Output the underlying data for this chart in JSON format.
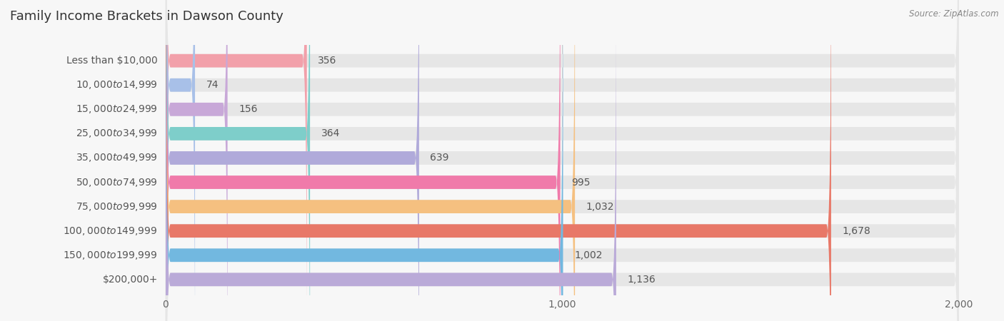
{
  "title": "Family Income Brackets in Dawson County",
  "source": "Source: ZipAtlas.com",
  "categories": [
    "Less than $10,000",
    "$10,000 to $14,999",
    "$15,000 to $24,999",
    "$25,000 to $34,999",
    "$35,000 to $49,999",
    "$50,000 to $74,999",
    "$75,000 to $99,999",
    "$100,000 to $149,999",
    "$150,000 to $199,999",
    "$200,000+"
  ],
  "values": [
    356,
    74,
    156,
    364,
    639,
    995,
    1032,
    1678,
    1002,
    1136
  ],
  "bar_colors": [
    "#f2a0aa",
    "#a8c0e8",
    "#c8a8d8",
    "#7ececa",
    "#b0aada",
    "#f07aaa",
    "#f5c080",
    "#e87868",
    "#72b8e0",
    "#baaad8"
  ],
  "xlim": [
    0,
    2000
  ],
  "xticks": [
    0,
    1000,
    2000
  ],
  "background_color": "#f7f7f7",
  "bar_bg_color": "#e6e6e6",
  "title_fontsize": 13,
  "label_fontsize": 10,
  "value_fontsize": 10,
  "tick_fontsize": 10
}
